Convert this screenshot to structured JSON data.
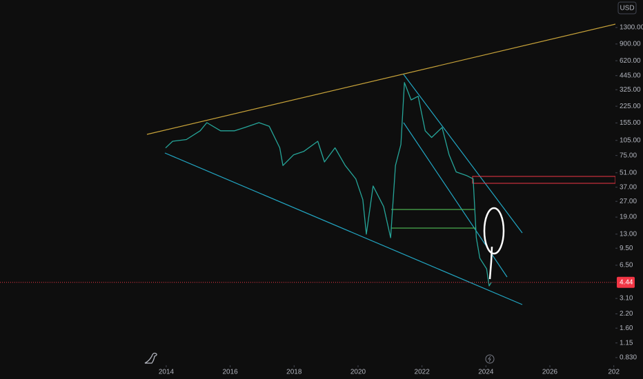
{
  "chart_data": {
    "type": "line",
    "currency": "USD",
    "log_scale": true,
    "grid": false,
    "color": "#26a69a",
    "last_price": 4.44,
    "last_price_color": "#f23645",
    "x": [
      2013.98,
      2014.2,
      2014.63,
      2015.06,
      2015.27,
      2015.7,
      2016.14,
      2016.46,
      2016.9,
      2017.22,
      2017.55,
      2017.65,
      2017.98,
      2018.3,
      2018.74,
      2018.95,
      2019.28,
      2019.6,
      2019.93,
      2020.15,
      2020.26,
      2020.47,
      2020.8,
      2021.02,
      2021.17,
      2021.34,
      2021.45,
      2021.66,
      2021.88,
      2022.1,
      2022.3,
      2022.63,
      2022.85,
      2023.07,
      2023.39,
      2023.6,
      2023.7,
      2023.81,
      2024.02,
      2024.1,
      2024.17
    ],
    "values": [
      88.7,
      103,
      107,
      130,
      156,
      130,
      130,
      140,
      156,
      144,
      89,
      60,
      76,
      82,
      103,
      65,
      89,
      60,
      44.5,
      28,
      13,
      38,
      24,
      12,
      60,
      96,
      381,
      259,
      281,
      130,
      112,
      140,
      76,
      52,
      48,
      44.5,
      12,
      7.6,
      6.0,
      4.1,
      4.44
    ],
    "xlim": [
      2008.8,
      2028.05
    ],
    "xticks": [
      2014,
      2016,
      2018,
      2020,
      2022,
      2024,
      2026,
      {
        "value": 2028,
        "label": "202"
      }
    ],
    "ylim": [
      0.7,
      2400
    ],
    "yticks": [
      {
        "value": 1300,
        "label": "1300.00"
      },
      {
        "value": 900,
        "label": "900.00"
      },
      {
        "value": 620,
        "label": "620.00"
      },
      {
        "value": 445,
        "label": "445.00"
      },
      {
        "value": 325,
        "label": "325.00"
      },
      {
        "value": 225,
        "label": "225.00"
      },
      {
        "value": 155,
        "label": "155.00"
      },
      {
        "value": 105,
        "label": "105.00"
      },
      {
        "value": 75,
        "label": "75.00"
      },
      {
        "value": 51,
        "label": "51.00"
      },
      {
        "value": 37,
        "label": "37.00"
      },
      {
        "value": 27,
        "label": "27.00"
      },
      {
        "value": 19,
        "label": "19.00"
      },
      {
        "value": 13,
        "label": "13.00"
      },
      {
        "value": 9.5,
        "label": "9.50"
      },
      {
        "value": 6.5,
        "label": "6.50"
      },
      {
        "value": 3.1,
        "label": "3.10"
      },
      {
        "value": 2.2,
        "label": "2.20"
      },
      {
        "value": 1.6,
        "label": "1.60"
      },
      {
        "value": 1.15,
        "label": "1.15"
      },
      {
        "value": 0.83,
        "label": "0.830"
      }
    ]
  }
}
